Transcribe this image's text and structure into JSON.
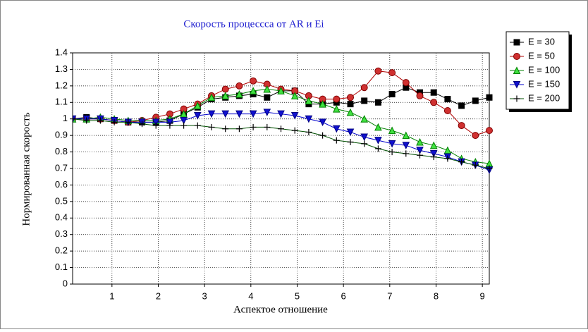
{
  "chart_data": {
    "type": "line",
    "title": "Скорость процессса от AR и Ei",
    "x_label": "Аспектое отношение",
    "y_label": "Нормированная скорость",
    "xlim": [
      0.15,
      9.15
    ],
    "ylim": [
      0,
      1.4
    ],
    "xticks": [
      1,
      2,
      3,
      4,
      5,
      6,
      7,
      8,
      9
    ],
    "yticks": [
      0,
      0.1,
      0.2,
      0.3,
      0.4,
      0.5,
      0.6,
      0.7,
      0.8,
      0.9,
      1,
      1.1,
      1.2,
      1.3,
      1.4
    ],
    "grid": true,
    "legend": "right",
    "x": [
      0.15,
      0.45,
      0.75,
      1.05,
      1.35,
      1.65,
      1.95,
      2.25,
      2.55,
      2.85,
      3.15,
      3.45,
      3.75,
      4.05,
      4.35,
      4.65,
      4.95,
      5.25,
      5.55,
      5.85,
      6.15,
      6.45,
      6.75,
      7.05,
      7.35,
      7.65,
      7.95,
      8.25,
      8.55,
      8.85,
      9.15
    ],
    "series": [
      {
        "name": "E = 30",
        "color": "#000000",
        "marker": "square",
        "values": [
          1.0,
          1.01,
          1.0,
          0.99,
          0.98,
          0.98,
          0.98,
          0.99,
          1.03,
          1.07,
          1.12,
          1.13,
          1.14,
          1.15,
          1.13,
          1.17,
          1.17,
          1.09,
          1.09,
          1.1,
          1.09,
          1.11,
          1.1,
          1.15,
          1.19,
          1.16,
          1.16,
          1.12,
          1.08,
          1.11,
          1.13
        ]
      },
      {
        "name": "E = 50",
        "color": "#b00000",
        "marker": "circle",
        "values": [
          1.0,
          1.0,
          1.0,
          0.99,
          0.98,
          0.99,
          1.01,
          1.03,
          1.06,
          1.09,
          1.14,
          1.18,
          1.2,
          1.23,
          1.21,
          1.18,
          1.17,
          1.14,
          1.12,
          1.12,
          1.13,
          1.19,
          1.29,
          1.28,
          1.22,
          1.14,
          1.1,
          1.05,
          0.96,
          0.9,
          0.93
        ]
      },
      {
        "name": "E = 100",
        "color": "#008000",
        "marker": "triangle",
        "values": [
          1.0,
          1.0,
          1.01,
          1.0,
          0.99,
          0.99,
          0.99,
          1.0,
          1.03,
          1.08,
          1.13,
          1.14,
          1.15,
          1.17,
          1.18,
          1.17,
          1.14,
          1.11,
          1.09,
          1.06,
          1.04,
          1.0,
          0.95,
          0.93,
          0.9,
          0.86,
          0.84,
          0.81,
          0.76,
          0.74,
          0.73
        ]
      },
      {
        "name": "E = 150",
        "color": "#0000cc",
        "marker": "down",
        "values": [
          1.0,
          1.0,
          1.0,
          0.99,
          0.98,
          0.98,
          0.98,
          0.98,
          0.99,
          1.02,
          1.03,
          1.03,
          1.03,
          1.03,
          1.04,
          1.03,
          1.02,
          1.0,
          0.98,
          0.94,
          0.92,
          0.89,
          0.87,
          0.85,
          0.84,
          0.81,
          0.79,
          0.77,
          0.74,
          0.72,
          0.69
        ]
      },
      {
        "name": "E = 200",
        "color": "#005000",
        "marker": "plus",
        "values": [
          1.0,
          0.99,
          0.99,
          0.98,
          0.98,
          0.97,
          0.96,
          0.96,
          0.96,
          0.96,
          0.95,
          0.94,
          0.94,
          0.95,
          0.95,
          0.94,
          0.93,
          0.92,
          0.9,
          0.87,
          0.86,
          0.85,
          0.82,
          0.8,
          0.79,
          0.78,
          0.77,
          0.76,
          0.74,
          0.72,
          0.7
        ]
      }
    ]
  }
}
